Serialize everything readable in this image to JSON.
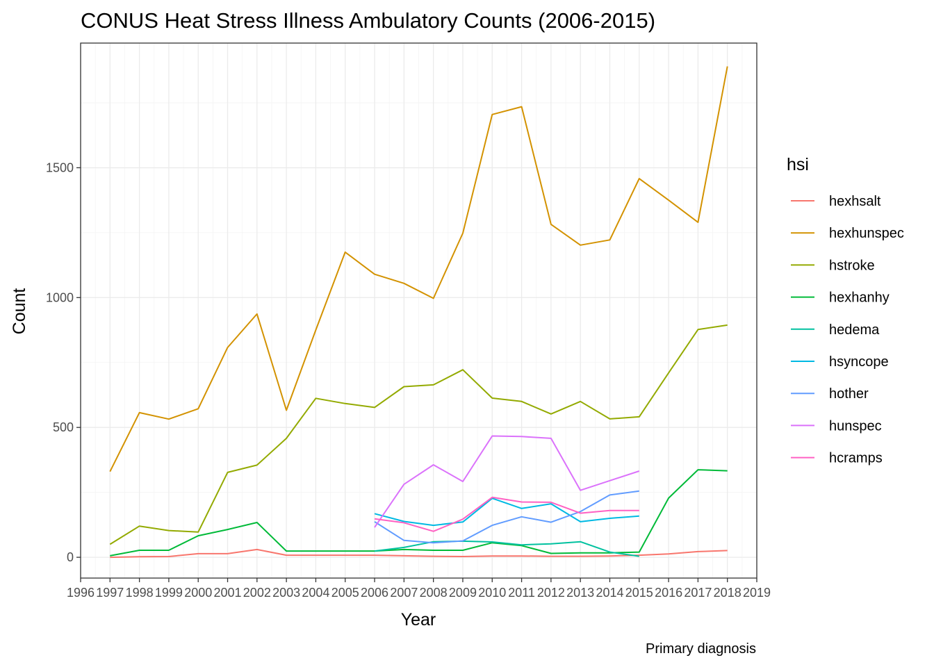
{
  "chart_data": {
    "type": "line",
    "title": "CONUS Heat Stress Illness Ambulatory Counts (2006-2015)",
    "xlabel": "Year",
    "ylabel": "Count",
    "caption": "Primary diagnosis",
    "legend_title": "hsi",
    "legend_position": "right",
    "grid": true,
    "xlim": [
      1996,
      2019
    ],
    "ylim": [
      -80,
      1980
    ],
    "x_ticks": [
      1996,
      1997,
      1998,
      1999,
      2000,
      2001,
      2002,
      2003,
      2004,
      2005,
      2006,
      2007,
      2008,
      2009,
      2010,
      2011,
      2012,
      2013,
      2014,
      2015,
      2016,
      2017,
      2018,
      2019
    ],
    "y_ticks": [
      0,
      500,
      1000,
      1500
    ],
    "series": [
      {
        "name": "hexhsalt",
        "color": "#F8766D",
        "x": [
          1997,
          1998,
          1999,
          2000,
          2001,
          2002,
          2003,
          2004,
          2005,
          2006,
          2007,
          2008,
          2009,
          2010,
          2011,
          2012,
          2013,
          2014,
          2015,
          2016,
          2017,
          2018
        ],
        "y": [
          0,
          2,
          3,
          14,
          14,
          30,
          8,
          8,
          8,
          8,
          6,
          4,
          3,
          5,
          5,
          4,
          4,
          5,
          8,
          13,
          22,
          26
        ]
      },
      {
        "name": "hexhunspec",
        "color": "#D39200",
        "x": [
          1997,
          1998,
          1999,
          2000,
          2001,
          2002,
          2003,
          2004,
          2005,
          2006,
          2007,
          2008,
          2009,
          2010,
          2011,
          2012,
          2013,
          2014,
          2015,
          2016,
          2017,
          2018
        ],
        "y": [
          330,
          557,
          532,
          572,
          808,
          937,
          566,
          875,
          1175,
          1090,
          1055,
          997,
          1248,
          1705,
          1735,
          1282,
          1202,
          1222,
          1458,
          1375,
          1290,
          1890
        ]
      },
      {
        "name": "hstroke",
        "color": "#93AA00",
        "x": [
          1997,
          1998,
          1999,
          2000,
          2001,
          2002,
          2003,
          2004,
          2005,
          2006,
          2007,
          2008,
          2009,
          2010,
          2011,
          2012,
          2013,
          2014,
          2015,
          2016,
          2017,
          2018
        ],
        "y": [
          50,
          120,
          103,
          97,
          327,
          355,
          458,
          612,
          592,
          577,
          657,
          664,
          722,
          613,
          600,
          552,
          600,
          533,
          541,
          710,
          877,
          894
        ]
      },
      {
        "name": "hexhanhy",
        "color": "#00BA38",
        "x": [
          1997,
          1998,
          1999,
          2000,
          2001,
          2002,
          2003,
          2004,
          2005,
          2006,
          2007,
          2008,
          2009,
          2010,
          2011,
          2012,
          2013,
          2014,
          2015,
          2016,
          2017,
          2018
        ],
        "y": [
          6,
          27,
          27,
          83,
          107,
          134,
          24,
          24,
          24,
          24,
          30,
          27,
          27,
          56,
          45,
          15,
          17,
          17,
          20,
          228,
          337,
          333
        ]
      },
      {
        "name": "hedema",
        "color": "#00C19F",
        "x": [
          2006,
          2007,
          2008,
          2009,
          2010,
          2011,
          2012,
          2013,
          2014,
          2015
        ],
        "y": [
          24,
          38,
          60,
          62,
          59,
          48,
          52,
          60,
          20,
          4
        ]
      },
      {
        "name": "hsyncope",
        "color": "#00B9E3",
        "x": [
          2006,
          2007,
          2008,
          2009,
          2010,
          2011,
          2012,
          2013,
          2014,
          2015
        ],
        "y": [
          168,
          138,
          123,
          136,
          227,
          188,
          206,
          137,
          150,
          159
        ]
      },
      {
        "name": "hother",
        "color": "#619CFF",
        "x": [
          2006,
          2007,
          2008,
          2009,
          2010,
          2011,
          2012,
          2013,
          2014,
          2015
        ],
        "y": [
          137,
          65,
          56,
          63,
          123,
          156,
          135,
          176,
          240,
          255
        ]
      },
      {
        "name": "hunspec",
        "color": "#DB72FB",
        "x": [
          2006,
          2007,
          2008,
          2009,
          2010,
          2011,
          2012,
          2013,
          2014,
          2015
        ],
        "y": [
          115,
          281,
          356,
          292,
          467,
          465,
          458,
          258,
          295,
          332
        ]
      },
      {
        "name": "hcramps",
        "color": "#FF61C3",
        "x": [
          2006,
          2007,
          2008,
          2009,
          2010,
          2011,
          2012,
          2013,
          2014,
          2015
        ],
        "y": [
          148,
          133,
          100,
          147,
          231,
          213,
          212,
          170,
          180,
          180
        ]
      }
    ]
  }
}
